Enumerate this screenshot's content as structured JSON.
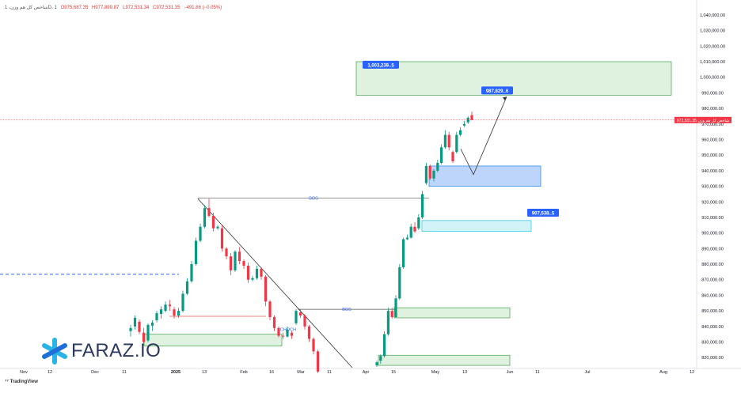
{
  "header": {
    "symbol": "شاخص کل هم وزن، 1D، 1",
    "open": "O975,687.35",
    "high": "H977,899.87",
    "low": "L972,531.34",
    "close": "C972,531.35",
    "change": "−491.86 (−0.05%)"
  },
  "branding": {
    "logo_text": "FARAZ.IO",
    "platform": "TradingView"
  },
  "price_tag": {
    "label": "شاخص کل هم وزن",
    "value": "972,531.35"
  },
  "chart_data": {
    "type": "candlestick",
    "title": "",
    "xlabel": "",
    "ylabel": "",
    "ylim": [
      813000,
      1043000
    ],
    "x_ticks": [
      "Nov",
      "12",
      "Dec",
      "11",
      "2025",
      "13",
      "Feb",
      "16",
      "Mar",
      "11",
      "Apr",
      "15",
      "May",
      "13",
      "Jun",
      "11",
      "Jul",
      "Aug",
      "12"
    ],
    "y_ticks": [
      "1,040,000.00",
      "1,030,000.00",
      "1,020,000.00",
      "1,010,000.00",
      "1,000,000.00",
      "990,000.00",
      "980,000.00",
      "970,000.00",
      "960,000.00",
      "950,000.00",
      "940,000.00",
      "930,000.00",
      "920,000.00",
      "910,000.00",
      "900,000.00",
      "890,000.00",
      "880,000.00",
      "870,000.00",
      "860,000.00",
      "850,000.00",
      "840,000.00",
      "830,000.00",
      "820,000.00"
    ],
    "last_price": 972531.35,
    "candles": [
      {
        "o": 837000,
        "h": 841000,
        "l": 833500,
        "c": 839000
      },
      {
        "o": 840000,
        "h": 847000,
        "l": 838000,
        "c": 845500
      },
      {
        "o": 843000,
        "h": 844500,
        "l": 835000,
        "c": 836500
      },
      {
        "o": 836000,
        "h": 839000,
        "l": 828500,
        "c": 830000
      },
      {
        "o": 831000,
        "h": 842000,
        "l": 830000,
        "c": 841000
      },
      {
        "o": 840500,
        "h": 844000,
        "l": 837000,
        "c": 842500
      },
      {
        "o": 844000,
        "h": 850000,
        "l": 842500,
        "c": 848500
      },
      {
        "o": 848000,
        "h": 853000,
        "l": 845000,
        "c": 851000
      },
      {
        "o": 850000,
        "h": 856000,
        "l": 849000,
        "c": 854000
      },
      {
        "o": 854000,
        "h": 857000,
        "l": 850000,
        "c": 853000
      },
      {
        "o": 851000,
        "h": 852500,
        "l": 845000,
        "c": 847000
      },
      {
        "o": 847000,
        "h": 852000,
        "l": 845500,
        "c": 850000
      },
      {
        "o": 850000,
        "h": 863000,
        "l": 849000,
        "c": 861000
      },
      {
        "o": 861000,
        "h": 871000,
        "l": 860000,
        "c": 869000
      },
      {
        "o": 869000,
        "h": 882000,
        "l": 868000,
        "c": 880000
      },
      {
        "o": 880000,
        "h": 897000,
        "l": 879000,
        "c": 895000
      },
      {
        "o": 895000,
        "h": 906000,
        "l": 894000,
        "c": 904000
      },
      {
        "o": 904000,
        "h": 918000,
        "l": 903000,
        "c": 916000
      },
      {
        "o": 916000,
        "h": 922000,
        "l": 910000,
        "c": 911000
      },
      {
        "o": 911000,
        "h": 913000,
        "l": 901000,
        "c": 903000
      },
      {
        "o": 903000,
        "h": 905000,
        "l": 902000,
        "c": 904000
      },
      {
        "o": 903000,
        "h": 905000,
        "l": 888000,
        "c": 890000
      },
      {
        "o": 890000,
        "h": 891000,
        "l": 883000,
        "c": 885000
      },
      {
        "o": 885000,
        "h": 887000,
        "l": 873000,
        "c": 876000
      },
      {
        "o": 876000,
        "h": 889000,
        "l": 875000,
        "c": 888000
      },
      {
        "o": 888000,
        "h": 891000,
        "l": 880000,
        "c": 882000
      },
      {
        "o": 882000,
        "h": 883000,
        "l": 877000,
        "c": 879000
      },
      {
        "o": 879000,
        "h": 881000,
        "l": 868000,
        "c": 870000
      },
      {
        "o": 870000,
        "h": 872500,
        "l": 869000,
        "c": 871000
      },
      {
        "o": 871000,
        "h": 879000,
        "l": 870000,
        "c": 877000
      },
      {
        "o": 877000,
        "h": 878000,
        "l": 870000,
        "c": 872000
      },
      {
        "o": 872000,
        "h": 873000,
        "l": 853000,
        "c": 856000
      },
      {
        "o": 856000,
        "h": 857000,
        "l": 844000,
        "c": 846000
      },
      {
        "o": 846000,
        "h": 847000,
        "l": 837000,
        "c": 839000
      },
      {
        "o": 839000,
        "h": 840000,
        "l": 833000,
        "c": 834000
      },
      {
        "o": 834000,
        "h": 836000,
        "l": 832000,
        "c": 833500
      },
      {
        "o": 833500,
        "h": 840000,
        "l": 833000,
        "c": 838000
      },
      {
        "o": 836000,
        "h": 837000,
        "l": 832000,
        "c": 834000
      },
      {
        "o": 842000,
        "h": 851000,
        "l": 841000,
        "c": 850000
      },
      {
        "o": 849000,
        "h": 851000,
        "l": 845500,
        "c": 847000
      },
      {
        "o": 847000,
        "h": 848000,
        "l": 838000,
        "c": 840000
      },
      {
        "o": 840000,
        "h": 841000,
        "l": 830000,
        "c": 832000
      },
      {
        "o": 832000,
        "h": 833000,
        "l": 822000,
        "c": 824000
      },
      {
        "o": 824000,
        "h": 825000,
        "l": 810000,
        "c": 811000
      },
      {
        "o": 815000,
        "h": 818000,
        "l": 814000,
        "c": 817000
      },
      {
        "o": 818000,
        "h": 822000,
        "l": 816000,
        "c": 821000
      },
      {
        "o": 821000,
        "h": 837000,
        "l": 820000,
        "c": 835000
      },
      {
        "o": 835000,
        "h": 852000,
        "l": 834000,
        "c": 850000
      },
      {
        "o": 850000,
        "h": 852000,
        "l": 845000,
        "c": 846000
      },
      {
        "o": 846000,
        "h": 860000,
        "l": 845500,
        "c": 858000
      },
      {
        "o": 858000,
        "h": 880000,
        "l": 857000,
        "c": 878000
      },
      {
        "o": 878000,
        "h": 897000,
        "l": 877000,
        "c": 896000
      },
      {
        "o": 896000,
        "h": 899000,
        "l": 895500,
        "c": 897000
      },
      {
        "o": 897000,
        "h": 906000,
        "l": 896500,
        "c": 904000
      },
      {
        "o": 904000,
        "h": 907000,
        "l": 900000,
        "c": 901000
      },
      {
        "o": 903000,
        "h": 912000,
        "l": 902000,
        "c": 910000
      },
      {
        "o": 910000,
        "h": 927000,
        "l": 909000,
        "c": 925000
      },
      {
        "o": 932000,
        "h": 945000,
        "l": 931000,
        "c": 943000
      },
      {
        "o": 943000,
        "h": 944000,
        "l": 934000,
        "c": 935000
      },
      {
        "o": 935000,
        "h": 941000,
        "l": 933000,
        "c": 940000
      },
      {
        "o": 940000,
        "h": 947000,
        "l": 939000,
        "c": 945000
      },
      {
        "o": 945000,
        "h": 957000,
        "l": 944000,
        "c": 955000
      },
      {
        "o": 955000,
        "h": 966000,
        "l": 954000,
        "c": 963000
      },
      {
        "o": 963000,
        "h": 965000,
        "l": 953000,
        "c": 955000
      },
      {
        "o": 952000,
        "h": 953000,
        "l": 945000,
        "c": 946000
      },
      {
        "o": 952000,
        "h": 965000,
        "l": 951000,
        "c": 963000
      },
      {
        "o": 963000,
        "h": 968000,
        "l": 962000,
        "c": 966000
      },
      {
        "o": 969000,
        "h": 972000,
        "l": 968000,
        "c": 970000
      },
      {
        "o": 971000,
        "h": 975000,
        "l": 970000,
        "c": 974000
      },
      {
        "o": 975687,
        "h": 977899,
        "l": 972531,
        "c": 972531
      }
    ],
    "zones": [
      {
        "color": "green",
        "label": "1,003,239..5",
        "top": 1010000,
        "bottom": 988500
      },
      {
        "color": "blue",
        "label": "",
        "top": 943000,
        "bottom": 930000
      },
      {
        "color": "cyan",
        "label": "907,538..5",
        "top": 908000,
        "bottom": 901000
      },
      {
        "color": "green",
        "label": "",
        "top": 852000,
        "bottom": 845500
      },
      {
        "color": "green",
        "label": "",
        "top": 835000,
        "bottom": 827500
      },
      {
        "color": "green",
        "label": "",
        "top": 821500,
        "bottom": 815000
      }
    ],
    "target_label": "987,829..6",
    "annotations": [
      {
        "type": "bos",
        "text": "BOS",
        "price": 922500
      },
      {
        "type": "bos",
        "text": "BOS",
        "price": 851000
      },
      {
        "type": "choch",
        "text": "CHOCH",
        "price": 834000
      }
    ],
    "dashed_level": 873500
  }
}
